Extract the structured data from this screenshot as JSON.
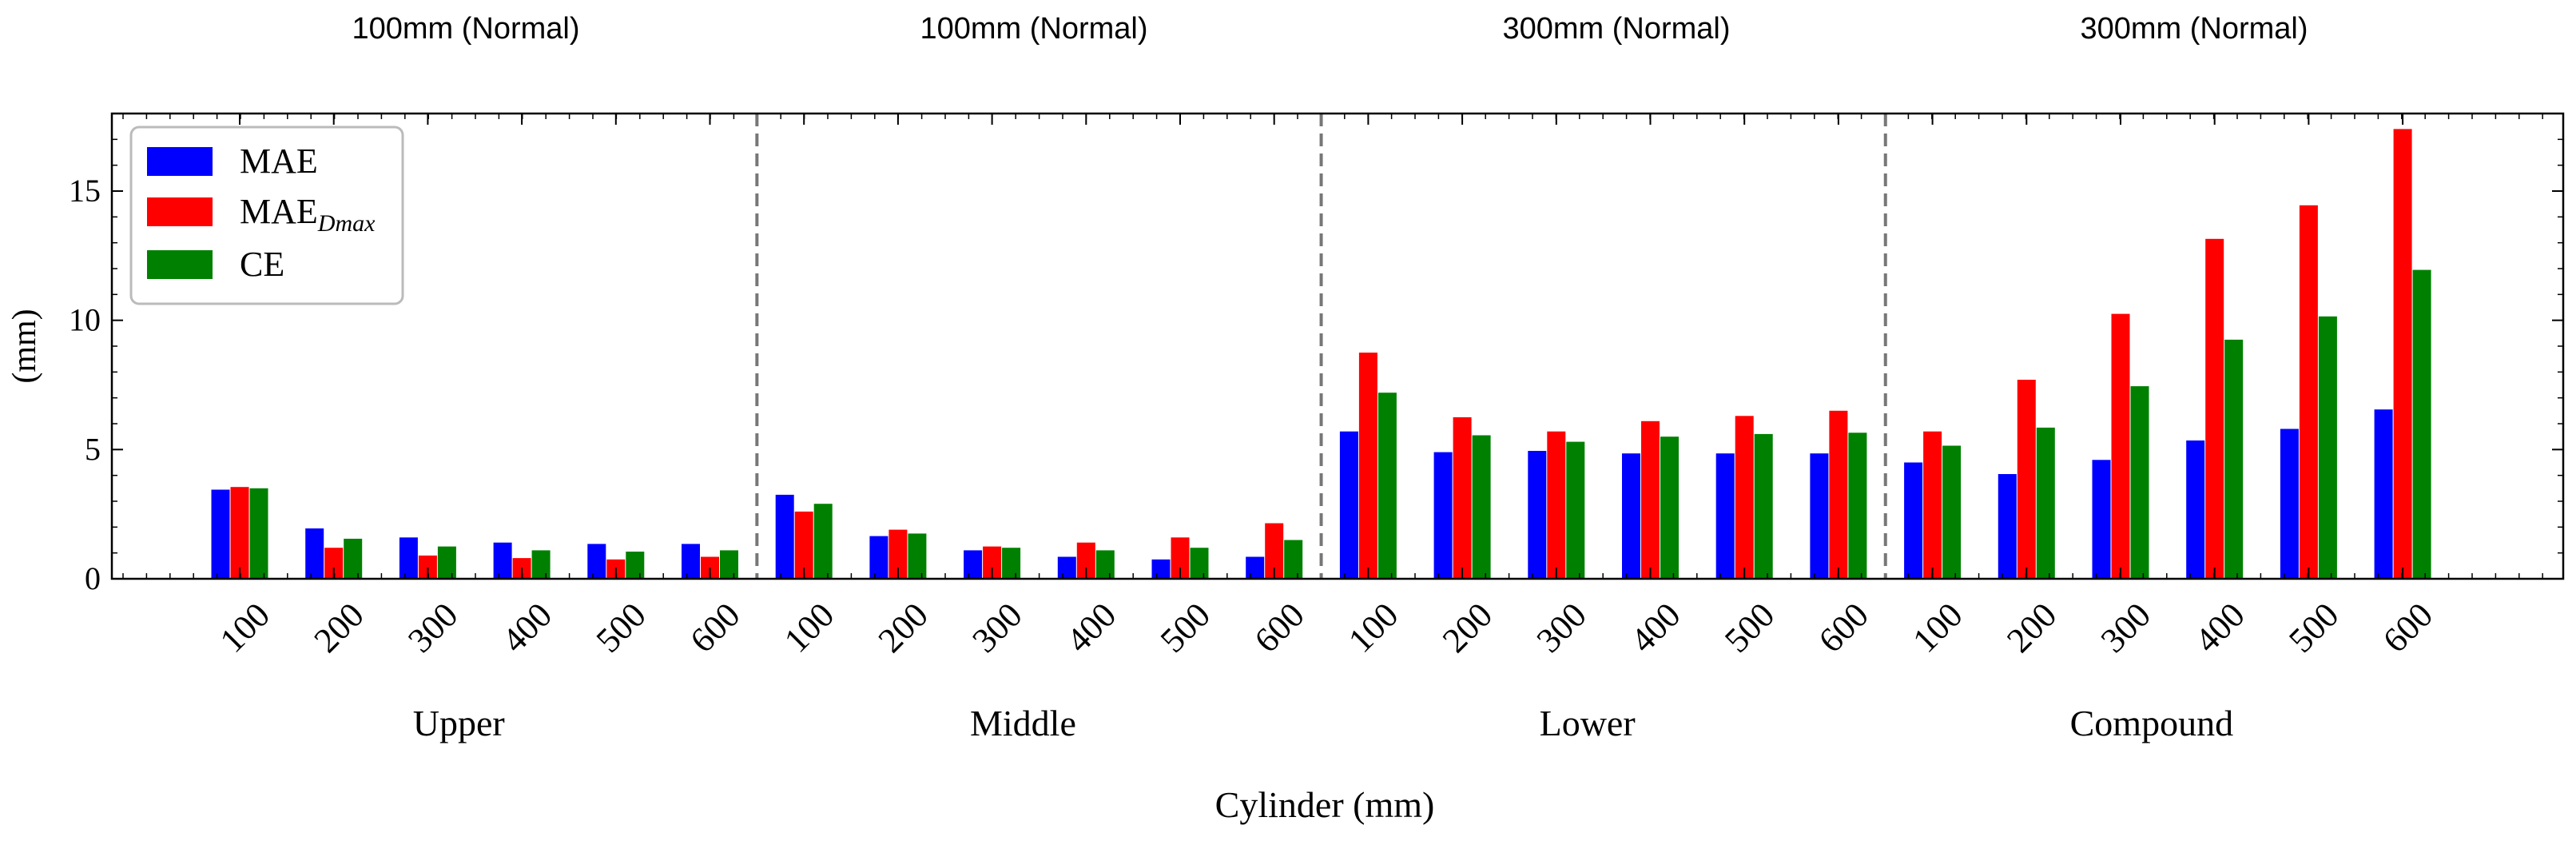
{
  "chart_data": {
    "type": "bar",
    "panel_titles": [
      "100mm (Normal)",
      "100mm (Normal)",
      "300mm (Normal)",
      "300mm (Normal)"
    ],
    "groups": [
      "Upper",
      "Middle",
      "Lower",
      "Compound"
    ],
    "categories": [
      "100",
      "200",
      "300",
      "400",
      "500",
      "600"
    ],
    "xlabel": "Cylinder (mm)",
    "ylabel": "(mm)",
    "ylim": [
      0,
      18
    ],
    "yticks": [
      "0",
      "5",
      "10",
      "15"
    ],
    "legend_position": "top-left",
    "series": [
      {
        "name": "MAE",
        "color": "#0000ff",
        "values": [
          [
            3.45,
            1.95,
            1.6,
            1.4,
            1.35,
            1.35
          ],
          [
            3.25,
            1.65,
            1.1,
            0.85,
            0.75,
            0.85
          ],
          [
            5.7,
            4.9,
            4.95,
            4.85,
            4.85,
            4.85
          ],
          [
            4.5,
            4.05,
            4.6,
            5.35,
            5.8,
            6.55
          ]
        ]
      },
      {
        "name": "MAE",
        "name_sub": "Dmax",
        "color": "#ff0000",
        "values": [
          [
            3.55,
            1.2,
            0.9,
            0.8,
            0.75,
            0.85
          ],
          [
            2.6,
            1.9,
            1.25,
            1.4,
            1.6,
            2.15
          ],
          [
            8.75,
            6.25,
            5.7,
            6.1,
            6.3,
            6.5
          ],
          [
            5.7,
            7.7,
            10.25,
            13.15,
            14.45,
            17.4
          ]
        ]
      },
      {
        "name": "CE",
        "color": "#008000",
        "values": [
          [
            3.5,
            1.55,
            1.25,
            1.1,
            1.05,
            1.1
          ],
          [
            2.9,
            1.75,
            1.2,
            1.1,
            1.2,
            1.5
          ],
          [
            7.2,
            5.55,
            5.3,
            5.5,
            5.6,
            5.65
          ],
          [
            5.15,
            5.85,
            7.45,
            9.25,
            10.15,
            11.95
          ]
        ]
      }
    ]
  }
}
